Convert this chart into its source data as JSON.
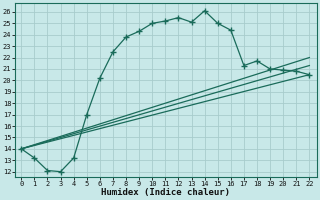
{
  "xlabel": "Humidex (Indice chaleur)",
  "bg_color": "#c8e8e8",
  "grid_color": "#a8cccc",
  "line_color": "#1a6b5a",
  "xlim": [
    -0.5,
    22.6
  ],
  "ylim": [
    11.5,
    26.8
  ],
  "xticks": [
    0,
    1,
    2,
    3,
    4,
    5,
    6,
    7,
    8,
    9,
    10,
    11,
    12,
    13,
    14,
    15,
    16,
    17,
    18,
    19,
    20,
    21,
    22
  ],
  "yticks": [
    12,
    13,
    14,
    15,
    16,
    17,
    18,
    19,
    20,
    21,
    22,
    23,
    24,
    25,
    26
  ],
  "main_x": [
    0,
    1,
    2,
    3,
    4,
    5,
    6,
    7,
    8,
    9,
    10,
    11,
    12,
    13,
    14,
    15,
    16,
    17,
    18,
    19,
    20,
    21,
    22
  ],
  "main_y": [
    14.0,
    13.2,
    12.1,
    12.0,
    13.2,
    17.0,
    20.2,
    22.5,
    23.8,
    24.3,
    25.0,
    25.2,
    25.5,
    25.1,
    26.1,
    25.0,
    24.4,
    21.3,
    21.7,
    21.0,
    20.9,
    20.8,
    20.5
  ],
  "fan_lines": [
    {
      "x": [
        0,
        22
      ],
      "y": [
        14.0,
        20.5
      ]
    },
    {
      "x": [
        0,
        22
      ],
      "y": [
        14.0,
        21.3
      ]
    },
    {
      "x": [
        0,
        22
      ],
      "y": [
        14.0,
        22.0
      ]
    }
  ],
  "xtick_fontsize": 5.0,
  "ytick_fontsize": 5.0,
  "xlabel_fontsize": 6.5
}
